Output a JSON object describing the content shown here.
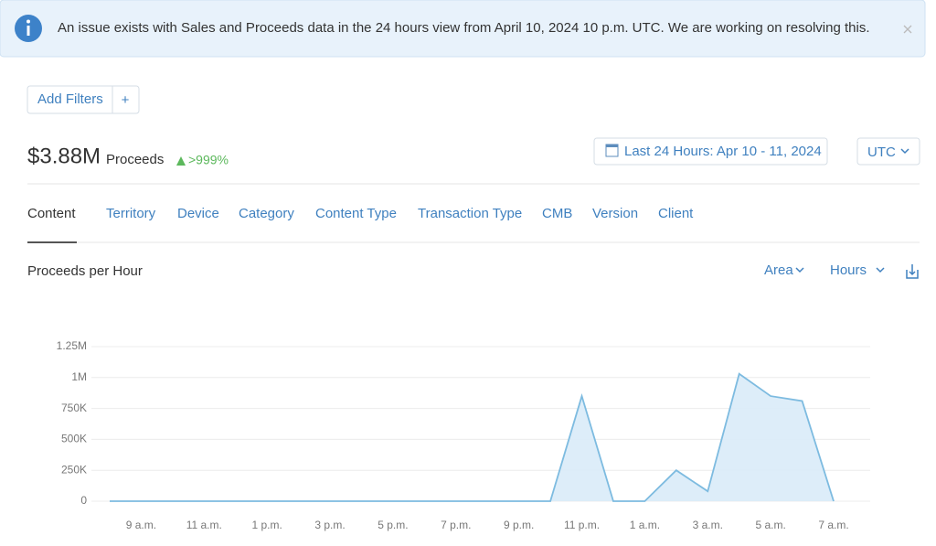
{
  "banner": {
    "text": "An issue exists with Sales and Proceeds data in the 24 hours view from April 10, 2024 10 p.m. UTC. We are working on resolving this."
  },
  "filters": {
    "add": "Add Filters",
    "plus": "+"
  },
  "summary": {
    "amount": "$3.88M",
    "label": "Proceeds",
    "change": ">999%"
  },
  "date_range": "Last 24 Hours: Apr 10 - 11, 2024",
  "timezone": "UTC",
  "tabs": [
    "Content",
    "Territory",
    "Device",
    "Category",
    "Content Type",
    "Transaction Type",
    "CMB",
    "Version",
    "Client"
  ],
  "chart_controls": {
    "type": "Area",
    "interval": "Hours"
  },
  "chart_data": {
    "type": "area",
    "title": "Proceeds per Hour",
    "categories": [
      null,
      "9 a.m.",
      null,
      "11 a.m.",
      null,
      "1 p.m.",
      null,
      "3 p.m.",
      null,
      "5 p.m.",
      null,
      "7 p.m.",
      null,
      "9 p.m.",
      null,
      "11 p.m.",
      null,
      "1 a.m.",
      null,
      "3 a.m.",
      null,
      "5 a.m.",
      null,
      "7 a.m."
    ],
    "values": [
      0,
      0,
      0,
      0,
      0,
      0,
      0,
      0,
      0,
      0,
      0,
      0,
      0,
      0,
      0,
      850000,
      0,
      0,
      250000,
      80000,
      1030000,
      850000,
      810000,
      0
    ],
    "color": "#7dbbe0",
    "ylim": [
      0,
      1250000
    ],
    "yticks": [
      0,
      {
        "value": 250000,
        "label": "250K"
      },
      {
        "value": 500000,
        "label": "500K"
      },
      {
        "value": 750000,
        "label": "750K"
      },
      {
        "value": 1000000,
        "label": "1M"
      },
      {
        "value": 1250000,
        "label": "1.25M"
      }
    ],
    "grid": true
  }
}
